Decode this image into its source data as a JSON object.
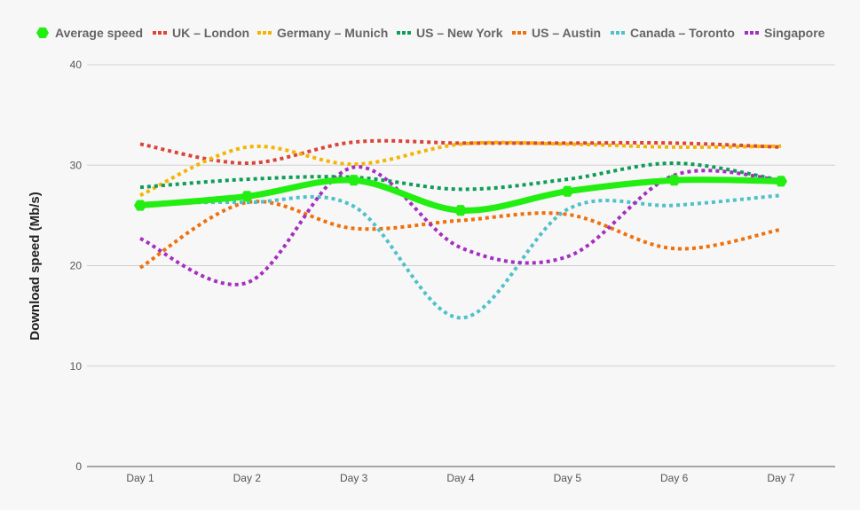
{
  "chart_data": {
    "type": "line",
    "title": "",
    "xlabel": "",
    "ylabel": "Download speed (Mb/s)",
    "categories": [
      "Day 1",
      "Day 2",
      "Day 3",
      "Day 4",
      "Day 5",
      "Day 6",
      "Day 7"
    ],
    "ylim": [
      0,
      40
    ],
    "yticks": [
      "0",
      "10",
      "20",
      "30",
      "40"
    ],
    "grid": true,
    "legend_position": "top",
    "series": [
      {
        "name": "Average speed",
        "color": "#22ee11",
        "style": "solid",
        "marker": "hexagon",
        "values": [
          26.0,
          26.9,
          28.5,
          25.5,
          27.4,
          28.5,
          28.4
        ]
      },
      {
        "name": "UK – London",
        "color": "#db4437",
        "style": "dotted",
        "values": [
          32.1,
          30.2,
          32.3,
          32.2,
          32.2,
          32.2,
          31.8
        ]
      },
      {
        "name": "Germany – Munich",
        "color": "#f4b400",
        "style": "dotted",
        "values": [
          27.0,
          31.8,
          30.1,
          32.1,
          32.1,
          31.8,
          31.9
        ]
      },
      {
        "name": "US – New York",
        "color": "#0f9d58",
        "style": "dotted",
        "values": [
          27.8,
          28.6,
          28.8,
          27.6,
          28.6,
          30.2,
          28.5
        ]
      },
      {
        "name": "US – Austin",
        "color": "#f0700a",
        "style": "dotted",
        "values": [
          19.8,
          26.3,
          23.7,
          24.5,
          25.1,
          21.7,
          23.6
        ]
      },
      {
        "name": "Canada – Toronto",
        "color": "#4fc1c9",
        "style": "dotted",
        "values": [
          26.2,
          26.3,
          25.9,
          14.8,
          25.6,
          26.0,
          27.0
        ]
      },
      {
        "name": "Singapore",
        "color": "#a52fc0",
        "style": "dotted",
        "values": [
          22.7,
          18.3,
          29.8,
          21.8,
          20.9,
          29.0,
          28.5
        ]
      }
    ]
  }
}
